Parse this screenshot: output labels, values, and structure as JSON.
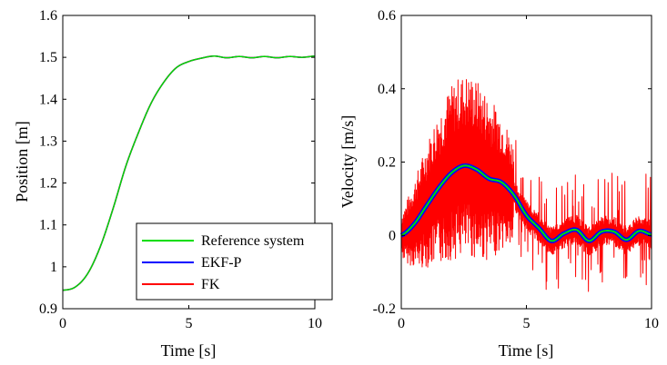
{
  "chart_data": [
    {
      "type": "line",
      "xlabel": "Time [s]",
      "ylabel": "Position [m]",
      "xlim": [
        0,
        10
      ],
      "ylim": [
        0.9,
        1.6
      ],
      "xticks": [
        "0",
        "5",
        "10"
      ],
      "yticks": [
        "0.9",
        "1",
        "1.1",
        "1.2",
        "1.3",
        "1.4",
        "1.5",
        "1.6"
      ],
      "grid": false,
      "legend_position": "bottom-right",
      "x": [
        0,
        0.5,
        1,
        1.5,
        2,
        2.5,
        3,
        3.5,
        4,
        4.5,
        5,
        5.5,
        6,
        6.5,
        7,
        7.5,
        8,
        8.5,
        9,
        9.5,
        10
      ],
      "series": [
        {
          "name": "Reference system",
          "color": "#00dd00",
          "values": [
            0.944,
            0.952,
            0.985,
            1.05,
            1.14,
            1.24,
            1.32,
            1.39,
            1.44,
            1.475,
            1.49,
            1.498,
            1.503,
            1.499,
            1.502,
            1.499,
            1.502,
            1.499,
            1.502,
            1.5,
            1.503
          ]
        },
        {
          "name": "EKF-P",
          "color": "#0000ff",
          "values": [
            0.944,
            0.952,
            0.985,
            1.05,
            1.14,
            1.24,
            1.32,
            1.39,
            1.44,
            1.475,
            1.49,
            1.498,
            1.503,
            1.499,
            1.502,
            1.499,
            1.502,
            1.499,
            1.502,
            1.5,
            1.503
          ]
        },
        {
          "name": "FK",
          "color": "#ff0000",
          "values": [
            0.944,
            0.952,
            0.985,
            1.05,
            1.14,
            1.24,
            1.32,
            1.39,
            1.44,
            1.475,
            1.49,
            1.498,
            1.503,
            1.499,
            1.502,
            1.499,
            1.502,
            1.499,
            1.502,
            1.5,
            1.503
          ]
        }
      ]
    },
    {
      "type": "line",
      "xlabel": "Time [s]",
      "ylabel": "Velocity [m/s]",
      "xlim": [
        0,
        10
      ],
      "ylim": [
        -0.2,
        0.6
      ],
      "xticks": [
        "0",
        "5",
        "10"
      ],
      "yticks": [
        "-0.2",
        "0",
        "0.2",
        "0.4",
        "0.6"
      ],
      "grid": false,
      "x": [
        0,
        0.5,
        1,
        1.5,
        2,
        2.5,
        3,
        3.5,
        4,
        4.5,
        5,
        5.5,
        6,
        6.5,
        7,
        7.5,
        8,
        8.5,
        9,
        9.5,
        10
      ],
      "series": [
        {
          "name": "Reference system",
          "color": "#00dd00",
          "values": [
            0,
            0.03,
            0.08,
            0.13,
            0.17,
            0.19,
            0.18,
            0.155,
            0.145,
            0.11,
            0.055,
            0.02,
            -0.015,
            0.005,
            0.015,
            -0.015,
            0.01,
            0.01,
            -0.012,
            0.012,
            0.002
          ]
        },
        {
          "name": "EKF-P",
          "color": "#0000ff",
          "values": [
            0,
            0.03,
            0.08,
            0.13,
            0.17,
            0.19,
            0.18,
            0.155,
            0.145,
            0.11,
            0.055,
            0.02,
            -0.015,
            0.005,
            0.015,
            -0.015,
            0.01,
            0.01,
            -0.012,
            0.012,
            0.002
          ]
        },
        {
          "name": "FK",
          "color": "#ff0000",
          "noise_max_amplitude": 0.25,
          "values": [
            0,
            0.03,
            0.08,
            0.13,
            0.17,
            0.19,
            0.18,
            0.155,
            0.145,
            0.11,
            0.055,
            0.02,
            -0.015,
            0.005,
            0.015,
            -0.015,
            0.01,
            0.01,
            -0.012,
            0.012,
            0.002
          ]
        }
      ]
    }
  ]
}
